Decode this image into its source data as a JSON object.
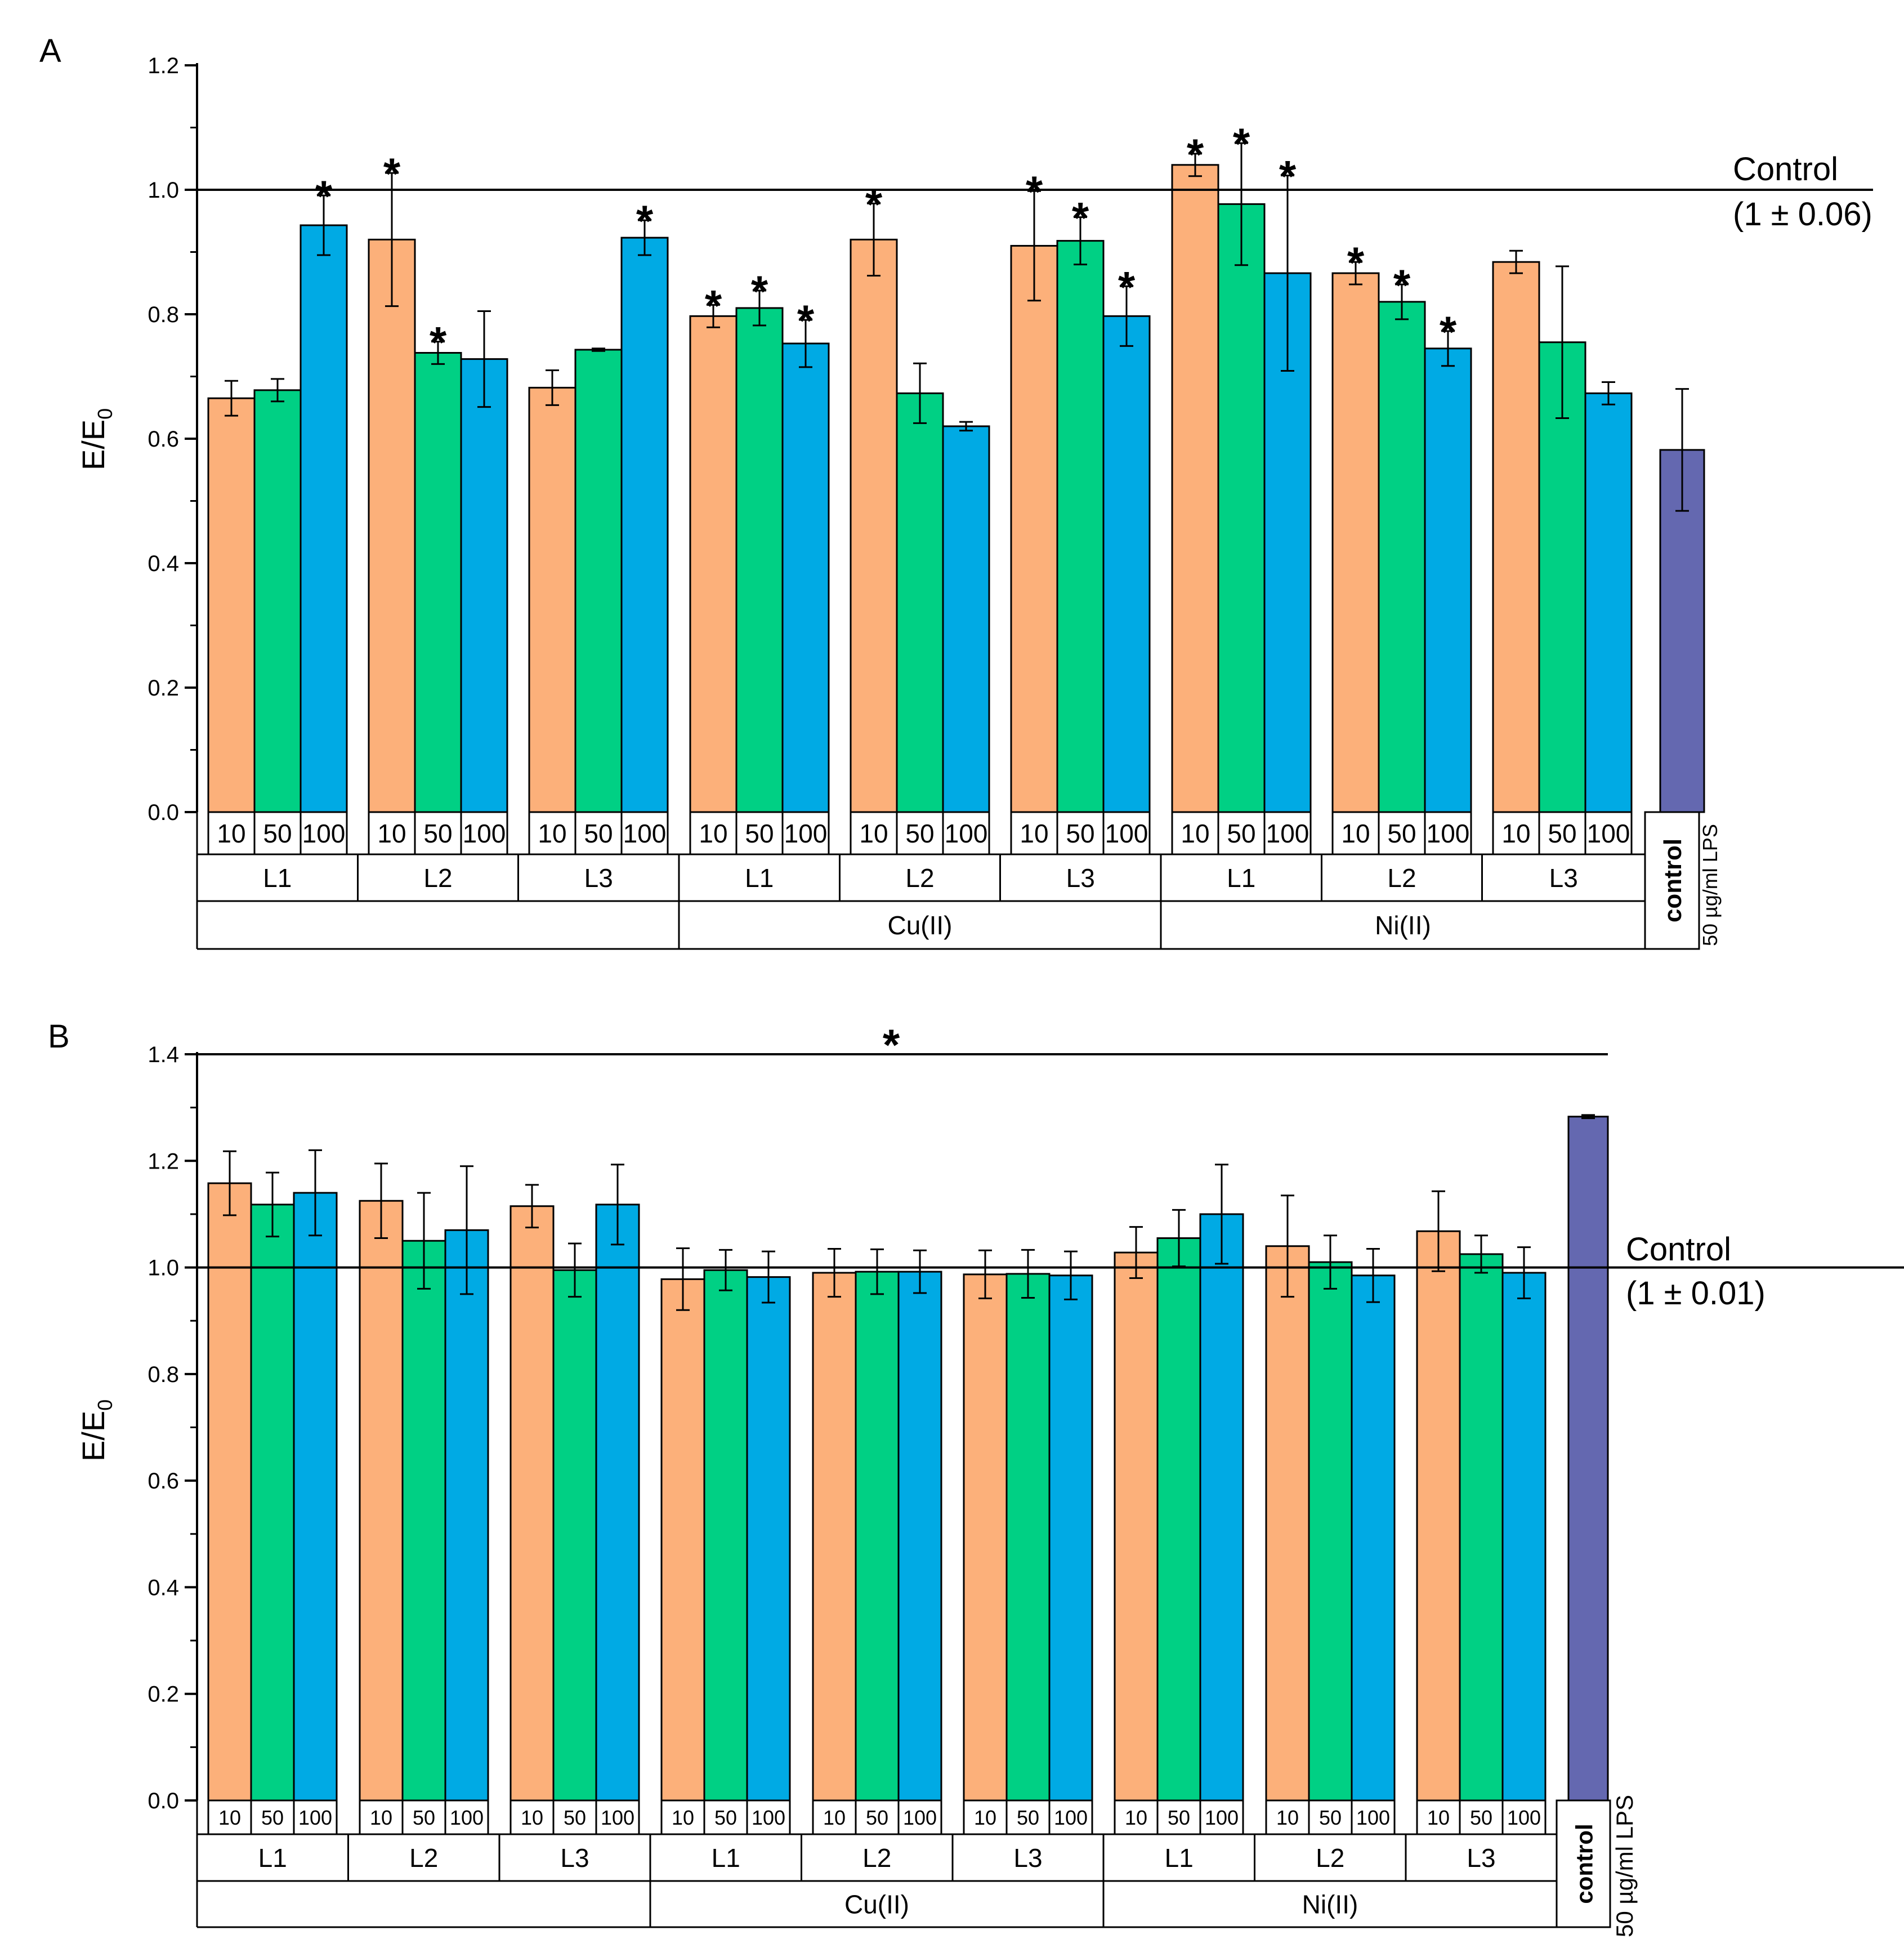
{
  "colors": {
    "conc_10": "#FCB07A",
    "conc_50": "#00D084",
    "conc_100": "#00AAE4",
    "lps_control": "#6468B0",
    "outline": "#000000"
  },
  "chart_data": [
    {
      "panel_label": "A",
      "type": "bar",
      "ylabel_main": "E/E",
      "ylabel_sub": "0",
      "ylim": [
        0,
        1.2
      ],
      "ytick_step": 0.2,
      "ytick_labels": [
        "0.0",
        "0.2",
        "0.4",
        "0.6",
        "0.8",
        "1.0",
        "1.2"
      ],
      "reference_line": {
        "value": 1.0,
        "label_line1": "Control",
        "label_line2": "(1 ± 0.06)"
      },
      "concentrations": [
        "10",
        "50",
        "100"
      ],
      "ligands": [
        "L1",
        "L2",
        "L3"
      ],
      "metals": [
        "",
        "Cu(II)",
        "Ni(II)"
      ],
      "groups": [
        {
          "metal": "",
          "ligand": "L1",
          "values": [
            0.665,
            0.678,
            0.943
          ],
          "errors": [
            0.028,
            0.018,
            0.048
          ],
          "significant": [
            false,
            false,
            true
          ]
        },
        {
          "metal": "",
          "ligand": "L2",
          "values": [
            0.92,
            0.738,
            0.728
          ],
          "errors": [
            0.107,
            0.018,
            0.077
          ],
          "significant": [
            true,
            true,
            false
          ]
        },
        {
          "metal": "",
          "ligand": "L3",
          "values": [
            0.682,
            0.743,
            0.923
          ],
          "errors": [
            0.028,
            0.002,
            0.028
          ],
          "significant": [
            false,
            false,
            true
          ]
        },
        {
          "metal": "Cu(II)",
          "ligand": "L1",
          "values": [
            0.797,
            0.81,
            0.753
          ],
          "errors": [
            0.018,
            0.028,
            0.038
          ],
          "significant": [
            true,
            true,
            true
          ]
        },
        {
          "metal": "Cu(II)",
          "ligand": "L2",
          "values": [
            0.92,
            0.673,
            0.62
          ],
          "errors": [
            0.058,
            0.048,
            0.007
          ],
          "significant": [
            true,
            false,
            false
          ]
        },
        {
          "metal": "Cu(II)",
          "ligand": "L3",
          "values": [
            0.91,
            0.918,
            0.797
          ],
          "errors": [
            0.088,
            0.038,
            0.048
          ],
          "significant": [
            true,
            true,
            true
          ]
        },
        {
          "metal": "Ni(II)",
          "ligand": "L1",
          "values": [
            1.04,
            0.977,
            0.866
          ],
          "errors": [
            0.018,
            0.098,
            0.157
          ],
          "significant": [
            true,
            true,
            true
          ]
        },
        {
          "metal": "Ni(II)",
          "ligand": "L2",
          "values": [
            0.866,
            0.82,
            0.745
          ],
          "errors": [
            0.018,
            0.028,
            0.028
          ],
          "significant": [
            true,
            true,
            true
          ]
        },
        {
          "metal": "Ni(II)",
          "ligand": "L3",
          "values": [
            0.884,
            0.755,
            0.673
          ],
          "errors": [
            0.018,
            0.122,
            0.018
          ],
          "significant": [
            false,
            false,
            false
          ]
        }
      ],
      "control_bar": {
        "value": 0.582,
        "error": 0.098,
        "label": "control",
        "side_label": "50 µg/ml LPS"
      }
    },
    {
      "panel_label": "B",
      "type": "bar",
      "ylabel_main": "E/E",
      "ylabel_sub": "0",
      "ylim": [
        0,
        1.4
      ],
      "ytick_step": 0.2,
      "ytick_labels": [
        "0.0",
        "0.2",
        "0.4",
        "0.6",
        "0.8",
        "1.0",
        "1.2",
        "1.4"
      ],
      "reference_line": {
        "value": 1.0,
        "label_line1": "Control",
        "label_line2": "(1 ± 0.01)"
      },
      "top_line": {
        "value": 1.4,
        "marker": "*"
      },
      "concentrations": [
        "10",
        "50",
        "100"
      ],
      "ligands": [
        "L1",
        "L2",
        "L3"
      ],
      "metals": [
        "",
        "Cu(II)",
        "Ni(II)"
      ],
      "groups": [
        {
          "metal": "",
          "ligand": "L1",
          "values": [
            1.158,
            1.118,
            1.14
          ],
          "errors": [
            0.06,
            0.06,
            0.08
          ],
          "significant": [
            false,
            false,
            false
          ]
        },
        {
          "metal": "",
          "ligand": "L2",
          "values": [
            1.125,
            1.05,
            1.07
          ],
          "errors": [
            0.07,
            0.09,
            0.12
          ],
          "significant": [
            false,
            false,
            false
          ]
        },
        {
          "metal": "",
          "ligand": "L3",
          "values": [
            1.115,
            0.995,
            1.118
          ],
          "errors": [
            0.04,
            0.05,
            0.075
          ],
          "significant": [
            false,
            false,
            false
          ]
        },
        {
          "metal": "Cu(II)",
          "ligand": "L1",
          "values": [
            0.978,
            0.995,
            0.982
          ],
          "errors": [
            0.058,
            0.038,
            0.048
          ],
          "significant": [
            false,
            false,
            false
          ]
        },
        {
          "metal": "Cu(II)",
          "ligand": "L2",
          "values": [
            0.99,
            0.992,
            0.992
          ],
          "errors": [
            0.045,
            0.042,
            0.04
          ],
          "significant": [
            false,
            false,
            false
          ]
        },
        {
          "metal": "Cu(II)",
          "ligand": "L3",
          "values": [
            0.987,
            0.988,
            0.985
          ],
          "errors": [
            0.045,
            0.045,
            0.045
          ],
          "significant": [
            false,
            false,
            false
          ]
        },
        {
          "metal": "Ni(II)",
          "ligand": "L1",
          "values": [
            1.028,
            1.055,
            1.1
          ],
          "errors": [
            0.048,
            0.053,
            0.093
          ],
          "significant": [
            false,
            false,
            false
          ]
        },
        {
          "metal": "Ni(II)",
          "ligand": "L2",
          "values": [
            1.04,
            1.01,
            0.985
          ],
          "errors": [
            0.095,
            0.05,
            0.05
          ],
          "significant": [
            false,
            false,
            false
          ]
        },
        {
          "metal": "Ni(II)",
          "ligand": "L3",
          "values": [
            1.068,
            1.025,
            0.99
          ],
          "errors": [
            0.075,
            0.035,
            0.048
          ],
          "significant": [
            false,
            false,
            false
          ]
        }
      ],
      "control_bar": {
        "value": 1.283,
        "error": 0.003,
        "label": "control",
        "side_label": "50 µg/ml LPS"
      }
    }
  ]
}
